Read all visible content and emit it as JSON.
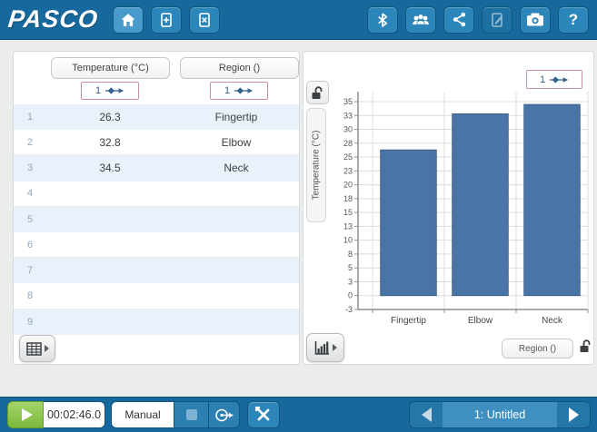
{
  "topbar": {
    "logo": "PASCO",
    "help_label": "?",
    "icons_left": [
      "home",
      "new-page",
      "close-page"
    ],
    "icons_right": [
      "bluetooth",
      "shared-sessions",
      "share",
      "journal",
      "snapshot",
      "help"
    ]
  },
  "table": {
    "columns": [
      {
        "label": "Temperature (°C)",
        "run": "1"
      },
      {
        "label": "Region ()",
        "run": "1"
      }
    ],
    "rows": [
      {
        "n": "1",
        "temperature": "26.3",
        "region": "Fingertip"
      },
      {
        "n": "2",
        "temperature": "32.8",
        "region": "Elbow"
      },
      {
        "n": "3",
        "temperature": "34.5",
        "region": "Neck"
      },
      {
        "n": "4",
        "temperature": "",
        "region": ""
      },
      {
        "n": "5",
        "temperature": "",
        "region": ""
      },
      {
        "n": "6",
        "temperature": "",
        "region": ""
      },
      {
        "n": "7",
        "temperature": "",
        "region": ""
      },
      {
        "n": "8",
        "temperature": "",
        "region": ""
      },
      {
        "n": "9",
        "temperature": "",
        "region": ""
      }
    ]
  },
  "chart": {
    "run": "1",
    "y_axis_label": "Temperature (°C)",
    "x_axis_button": "Region ()"
  },
  "chart_data": {
    "type": "bar",
    "title": "",
    "categories": [
      "Fingertip",
      "Elbow",
      "Neck"
    ],
    "values": [
      26.3,
      32.8,
      34.5
    ],
    "xlabel": "Region ()",
    "ylabel": "Temperature (°C)",
    "ylim": [
      -2.5,
      36.8
    ],
    "yticks": [
      {
        "v": -2.5,
        "label": "-3"
      },
      {
        "v": 0,
        "label": "0"
      },
      {
        "v": 2.5,
        "label": "3"
      },
      {
        "v": 5,
        "label": "5"
      },
      {
        "v": 7.5,
        "label": "8"
      },
      {
        "v": 10,
        "label": "10"
      },
      {
        "v": 12.5,
        "label": "13"
      },
      {
        "v": 15,
        "label": "15"
      },
      {
        "v": 17.5,
        "label": "18"
      },
      {
        "v": 20,
        "label": "20"
      },
      {
        "v": 22.5,
        "label": "23"
      },
      {
        "v": 25,
        "label": "25"
      },
      {
        "v": 27.5,
        "label": "28"
      },
      {
        "v": 30,
        "label": "30"
      },
      {
        "v": 32.5,
        "label": "33"
      },
      {
        "v": 35,
        "label": "35"
      }
    ],
    "bar_color": "#4a73a6",
    "grid": true,
    "legend": false
  },
  "bottombar": {
    "timer": "00:02:46.0",
    "mode": "Manual",
    "page": "1: Untitled"
  },
  "colors": {
    "toolbar_blue": "#16689d",
    "button_blue": "#2d86b9",
    "bar_fill": "#4a73a6",
    "row_tint": "#e9f2fa",
    "run_border": "#c9929e",
    "play_green": "#7cb93c"
  }
}
